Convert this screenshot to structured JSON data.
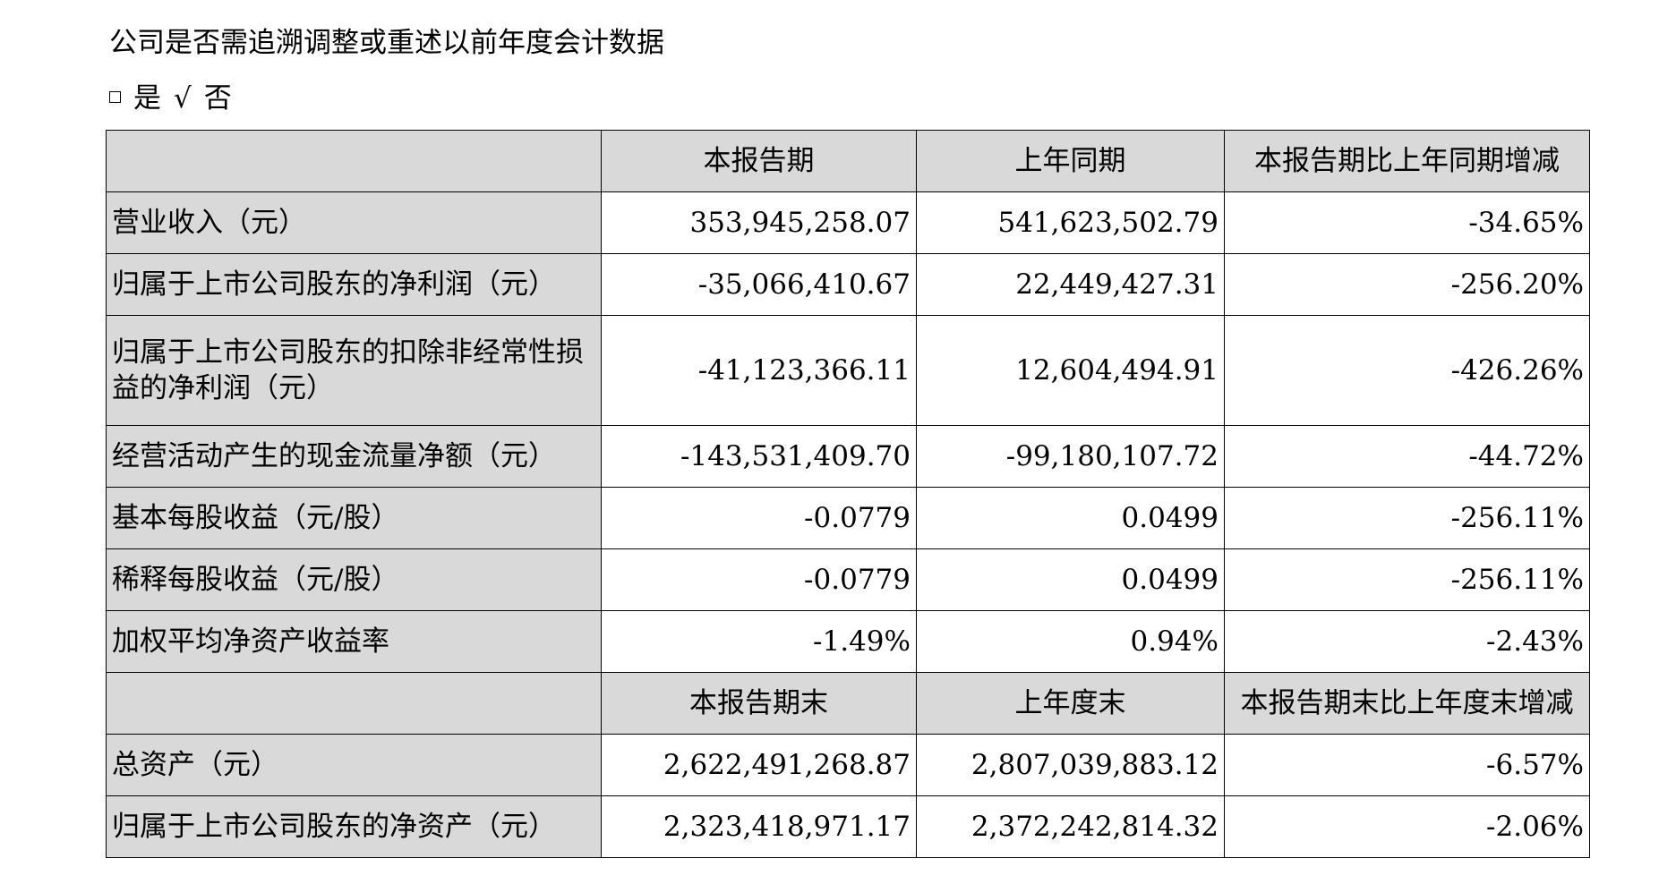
{
  "heading": "公司是否需追溯调整或重述以前年度会计数据",
  "options": {
    "yes_label": "是",
    "check_mark": "√",
    "no_label": "否"
  },
  "table": {
    "period_headers": [
      "",
      "本报告期",
      "上年同期",
      "本报告期比上年同期增减"
    ],
    "period_rows": [
      {
        "label": "营业收入（元）",
        "current": "353,945,258.07",
        "previous": "541,623,502.79",
        "change": "-34.65%"
      },
      {
        "label": "归属于上市公司股东的净利润（元）",
        "current": "-35,066,410.67",
        "previous": "22,449,427.31",
        "change": "-256.20%"
      },
      {
        "label": "归属于上市公司股东的扣除非经常性损益的净利润（元）",
        "current": "-41,123,366.11",
        "previous": "12,604,494.91",
        "change": "-426.26%"
      },
      {
        "label": "经营活动产生的现金流量净额（元）",
        "current": "-143,531,409.70",
        "previous": "-99,180,107.72",
        "change": "-44.72%"
      },
      {
        "label": "基本每股收益（元/股）",
        "current": "-0.0779",
        "previous": "0.0499",
        "change": "-256.11%"
      },
      {
        "label": "稀释每股收益（元/股）",
        "current": "-0.0779",
        "previous": "0.0499",
        "change": "-256.11%"
      },
      {
        "label": "加权平均净资产收益率",
        "current": "-1.49%",
        "previous": "0.94%",
        "change": "-2.43%"
      }
    ],
    "end_headers": [
      "",
      "本报告期末",
      "上年度末",
      "本报告期末比上年度末增减"
    ],
    "end_rows": [
      {
        "label": "总资产（元）",
        "current": "2,622,491,268.87",
        "previous": "2,807,039,883.12",
        "change": "-6.57%"
      },
      {
        "label": "归属于上市公司股东的净资产（元）",
        "current": "2,323,418,971.17",
        "previous": "2,372,242,814.32",
        "change": "-2.06%"
      }
    ]
  }
}
